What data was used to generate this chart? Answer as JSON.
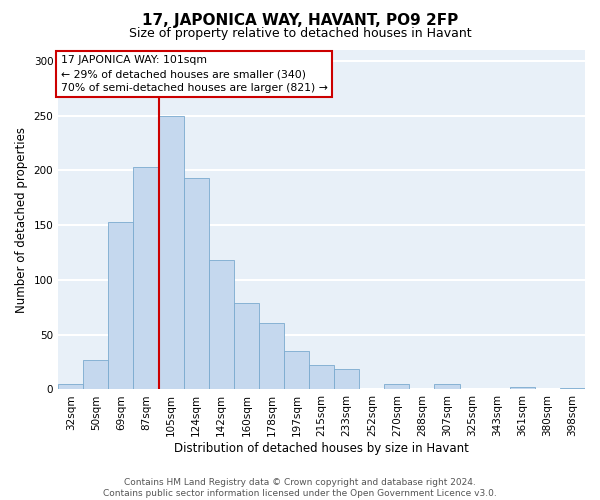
{
  "title": "17, JAPONICA WAY, HAVANT, PO9 2FP",
  "subtitle": "Size of property relative to detached houses in Havant",
  "xlabel": "Distribution of detached houses by size in Havant",
  "ylabel": "Number of detached properties",
  "bar_labels": [
    "32sqm",
    "50sqm",
    "69sqm",
    "87sqm",
    "105sqm",
    "124sqm",
    "142sqm",
    "160sqm",
    "178sqm",
    "197sqm",
    "215sqm",
    "233sqm",
    "252sqm",
    "270sqm",
    "288sqm",
    "307sqm",
    "325sqm",
    "343sqm",
    "361sqm",
    "380sqm",
    "398sqm"
  ],
  "bar_values": [
    5,
    27,
    153,
    203,
    250,
    193,
    118,
    79,
    61,
    35,
    22,
    19,
    0,
    5,
    0,
    5,
    0,
    0,
    2,
    0,
    1
  ],
  "bar_color": "#c5d8ee",
  "bar_edge_color": "#7aaacf",
  "vline_color": "#cc0000",
  "annotation_text": "17 JAPONICA WAY: 101sqm\n← 29% of detached houses are smaller (340)\n70% of semi-detached houses are larger (821) →",
  "annotation_box_color": "#ffffff",
  "annotation_box_edge": "#cc0000",
  "footer_text": "Contains HM Land Registry data © Crown copyright and database right 2024.\nContains public sector information licensed under the Open Government Licence v3.0.",
  "ylim": [
    0,
    310
  ],
  "yticks": [
    0,
    50,
    100,
    150,
    200,
    250,
    300
  ],
  "fig_bg_color": "#ffffff",
  "plot_bg_color": "#e8f0f8",
  "grid_color": "#ffffff",
  "title_fontsize": 11,
  "subtitle_fontsize": 9,
  "ylabel_fontsize": 8.5,
  "xlabel_fontsize": 8.5,
  "tick_fontsize": 7.5,
  "footer_fontsize": 6.5,
  "ann_fontsize": 7.8
}
